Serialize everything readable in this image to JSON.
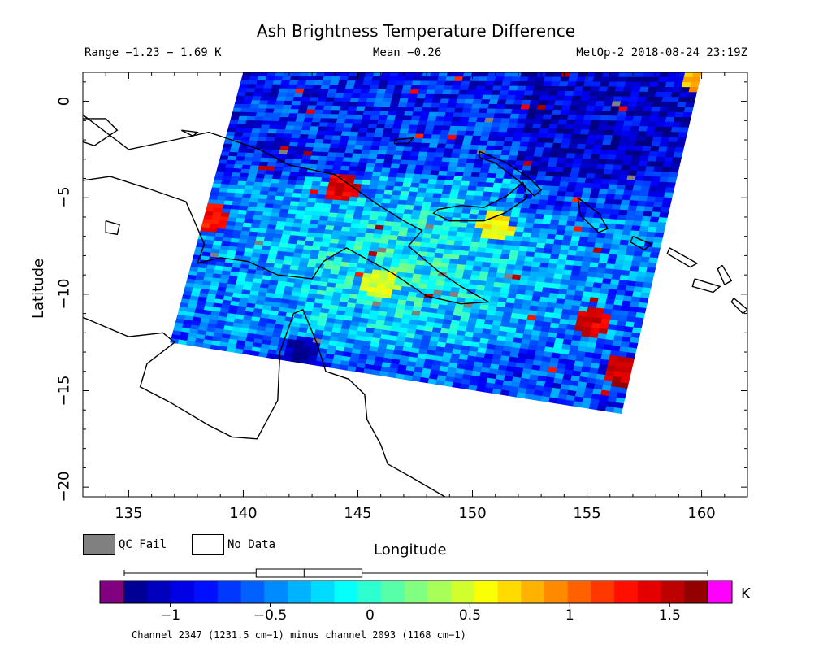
{
  "chart_data": {
    "type": "heatmap",
    "title": "Ash Brightness Temperature Difference",
    "range_text": "Range −1.23 − 1.69 K",
    "mean_text": "Mean −0.26",
    "satellite_text": "MetOp-2 2018-08-24 23:19Z",
    "xlabel": "Longitude",
    "ylabel": "Latitude",
    "xlim": [
      133,
      162
    ],
    "ylim": [
      -20.5,
      1.5
    ],
    "x_ticks": [
      135,
      140,
      145,
      150,
      155,
      160
    ],
    "x_tick_labels": [
      "135",
      "140",
      "145",
      "150",
      "155",
      "160"
    ],
    "y_ticks": [
      0,
      -5,
      -10,
      -15,
      -20
    ],
    "y_tick_labels": [
      "0",
      "−5",
      "−10",
      "−15",
      "−20"
    ],
    "legend": [
      {
        "label": "QC Fail",
        "color": "#808080"
      },
      {
        "label": "No Data",
        "color": "#ffffff"
      }
    ],
    "colorbar": {
      "vmin": -1.23,
      "vmax": 1.69,
      "ticks": [
        -1,
        -0.5,
        0,
        0.5,
        1,
        1.5
      ],
      "tick_labels": [
        "−1",
        "−0.5",
        "0",
        "0.5",
        "1",
        "1.5"
      ],
      "unit": "K",
      "under_color": "#800080",
      "over_color": "#ff00ff",
      "boxplot": {
        "min": -1.23,
        "q1": -0.57,
        "median": -0.33,
        "q3": -0.04,
        "max": 1.69
      }
    },
    "caption": "Channel 2347 (1231.5 cm−1) minus channel 2093 (1168 cm−1)",
    "swath_corners_lonlat": [
      [
        140.0,
        1.5
      ],
      [
        160.0,
        1.5
      ],
      [
        156.5,
        -16.2
      ],
      [
        136.8,
        -12.5
      ]
    ],
    "features": [
      {
        "lon": 144.3,
        "lat": -4.5,
        "value": 1.4
      },
      {
        "lon": 138.5,
        "lat": -6.0,
        "value": 1.3
      },
      {
        "lon": 155.2,
        "lat": -11.5,
        "value": 1.4
      },
      {
        "lon": 156.5,
        "lat": -14.0,
        "value": 1.5
      },
      {
        "lon": 146.0,
        "lat": -9.5,
        "value": 0.5
      },
      {
        "lon": 151.0,
        "lat": -6.5,
        "value": 0.6
      },
      {
        "lon": 160.0,
        "lat": 1.0,
        "value": 0.8
      },
      {
        "lon": 142.5,
        "lat": -13.0,
        "value": -1.1
      }
    ]
  }
}
